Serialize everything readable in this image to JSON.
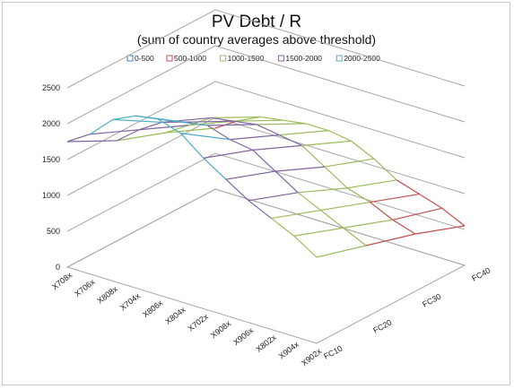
{
  "chart_data": {
    "type": "surface",
    "title": "PV Debt / R",
    "subtitle": "(sum of country averages above threshold)",
    "legend": {
      "position": "top",
      "entries": [
        {
          "label": "0-500",
          "color": "#4a7ebb"
        },
        {
          "label": "500-1000",
          "color": "#c0504d"
        },
        {
          "label": "1000-1500",
          "color": "#9bbb59"
        },
        {
          "label": "1500-2000",
          "color": "#8064a2"
        },
        {
          "label": "2000-2500",
          "color": "#4bacc6"
        }
      ]
    },
    "zlim": [
      0,
      2500
    ],
    "z_ticks": [
      0,
      500,
      1000,
      1500,
      2000,
      2500
    ],
    "grid": true,
    "x_categories": [
      "X708x",
      "X706x",
      "X808x",
      "X704x",
      "X806x",
      "X804x",
      "X702x",
      "X908x",
      "X906x",
      "X802x",
      "X904x",
      "X902x"
    ],
    "y_categories": [
      "FC10",
      "FC20",
      "FC30",
      "FC40"
    ],
    "values": [
      [
        1750,
        1400,
        1150,
        850
      ],
      [
        1950,
        1650,
        1350,
        1050
      ],
      [
        2250,
        1850,
        1550,
        1200
      ],
      [
        2400,
        1950,
        1600,
        1250
      ],
      [
        2450,
        2000,
        1650,
        1300
      ],
      [
        2350,
        1900,
        1600,
        1300
      ],
      [
        2100,
        1850,
        1550,
        1250
      ],
      [
        1900,
        1650,
        1350,
        1100
      ],
      [
        1700,
        1450,
        1150,
        900
      ],
      [
        1550,
        1300,
        1050,
        800
      ],
      [
        1400,
        1150,
        900,
        700
      ],
      [
        1200,
        1000,
        800,
        550
      ]
    ]
  }
}
